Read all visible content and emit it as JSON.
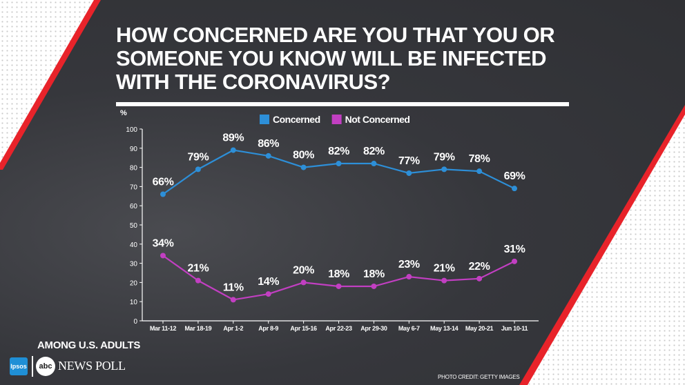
{
  "title": "HOW CONCERNED ARE YOU THAT YOU OR SOMEONE YOU KNOW WILL BE INFECTED WITH THE CORONAVIRUS?",
  "footer": {
    "subtitle": "AMONG U.S. ADULTS",
    "brand_ipsos": "Ipsos",
    "brand_abc": "abc",
    "brand_poll": "NEWS POLL",
    "credit": "PHOTO CREDIT: GETTY IMAGES"
  },
  "chart_data": {
    "type": "line",
    "title": "HOW CONCERNED ARE YOU THAT YOU OR SOMEONE YOU KNOW WILL BE INFECTED WITH THE CORONAVIRUS?",
    "ylabel": "%",
    "xlabel": "",
    "ylim": [
      0,
      100
    ],
    "yticks": [
      0,
      10,
      20,
      30,
      40,
      50,
      60,
      70,
      80,
      90,
      100
    ],
    "grid": false,
    "legend_position": "top",
    "categories": [
      "Mar 11-12",
      "Mar 18-19",
      "Apr 1-2",
      "Apr 8-9",
      "Apr 15-16",
      "Apr 22-23",
      "Apr 29-30",
      "May 6-7",
      "May 13-14",
      "May 20-21",
      "Jun 10-11"
    ],
    "series": [
      {
        "name": "Concerned",
        "color": "#2d8fd8",
        "values": [
          66,
          79,
          89,
          86,
          80,
          82,
          82,
          77,
          79,
          78,
          69
        ]
      },
      {
        "name": "Not Concerned",
        "color": "#c23fc2",
        "values": [
          34,
          21,
          11,
          14,
          20,
          18,
          18,
          23,
          21,
          22,
          31
        ]
      }
    ]
  }
}
